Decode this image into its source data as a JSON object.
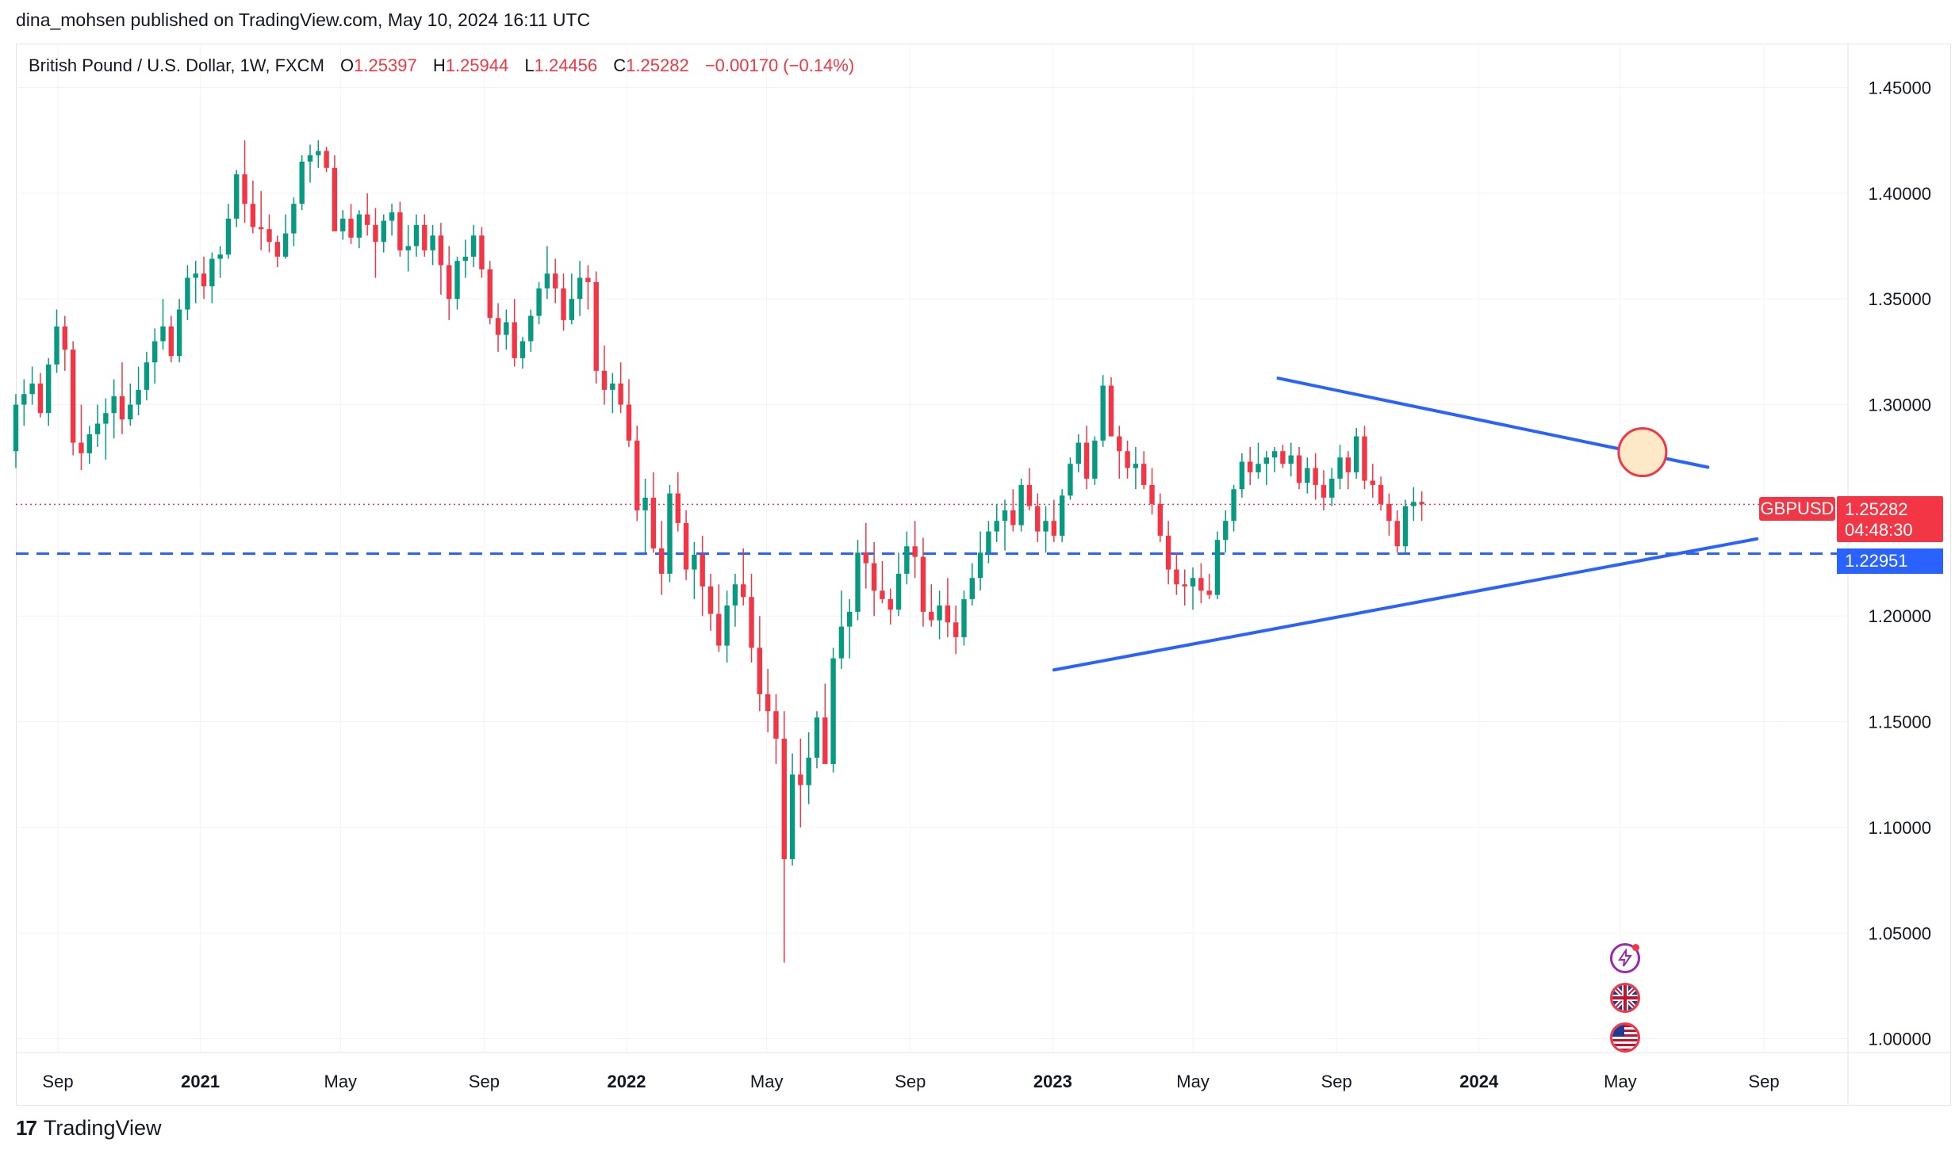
{
  "header": {
    "publisher_line": "dina_mohsen published on TradingView.com, May 10, 2024 16:11 UTC"
  },
  "legend": {
    "symbol": "British Pound / U.S. Dollar, 1W, FXCM",
    "open_label": "O",
    "open": "1.25397",
    "high_label": "H",
    "high": "1.25944",
    "low_label": "L",
    "low": "1.24456",
    "close_label": "C",
    "close": "1.25282",
    "change": "−0.00170 (−0.14%)"
  },
  "price_labels": {
    "symbol_tag": "GBPUSD",
    "last_price": "1.25282",
    "countdown": "04:48:30",
    "support_level": "1.22951"
  },
  "footer": {
    "brand": "TradingView"
  },
  "event_icons": [
    "lightning-event-icon",
    "uk-flag-icon",
    "us-flag-icon"
  ],
  "colors": {
    "up": "#089981",
    "down": "#f23645",
    "trendline": "#2962ff",
    "support": "#2962ff",
    "highlight_fill": "#fde8c8",
    "highlight_stroke": "#f23645"
  },
  "chart_data": {
    "type": "candlestick",
    "title": "British Pound / U.S. Dollar, 1W, FXCM",
    "y_ticks": [
      "1.45000",
      "1.40000",
      "1.35000",
      "1.30000",
      "1.25000",
      "1.20000",
      "1.15000",
      "1.10000",
      "1.05000",
      "1.00000"
    ],
    "ylim": [
      0.9935,
      1.4708
    ],
    "x_ticks": [
      {
        "label": "Sep",
        "date": "2020-09-01",
        "bold": false
      },
      {
        "label": "2021",
        "date": "2021-01-01",
        "bold": true
      },
      {
        "label": "May",
        "date": "2021-05-01",
        "bold": false
      },
      {
        "label": "Sep",
        "date": "2021-09-01",
        "bold": false
      },
      {
        "label": "2022",
        "date": "2022-01-01",
        "bold": true
      },
      {
        "label": "May",
        "date": "2022-05-01",
        "bold": false
      },
      {
        "label": "Sep",
        "date": "2022-09-01",
        "bold": false
      },
      {
        "label": "2023",
        "date": "2023-01-01",
        "bold": true
      },
      {
        "label": "May",
        "date": "2023-05-01",
        "bold": false
      },
      {
        "label": "Sep",
        "date": "2023-09-01",
        "bold": false
      },
      {
        "label": "2024",
        "date": "2024-01-01",
        "bold": true
      },
      {
        "label": "May",
        "date": "2024-05-01",
        "bold": false
      },
      {
        "label": "Sep",
        "date": "2024-09-01",
        "bold": false
      }
    ],
    "xlim": [
      "2020-07-27",
      "2024-11-12"
    ],
    "candles_weekly_from": "2020-07-27",
    "candles_ohlc": [
      [
        1.278,
        1.305,
        1.27,
        1.3
      ],
      [
        1.3,
        1.312,
        1.29,
        1.305
      ],
      [
        1.305,
        1.318,
        1.3,
        1.31
      ],
      [
        1.31,
        1.315,
        1.294,
        1.296
      ],
      [
        1.296,
        1.322,
        1.29,
        1.319
      ],
      [
        1.319,
        1.345,
        1.315,
        1.337
      ],
      [
        1.337,
        1.342,
        1.316,
        1.326
      ],
      [
        1.326,
        1.33,
        1.276,
        1.282
      ],
      [
        1.282,
        1.3,
        1.269,
        1.277
      ],
      [
        1.277,
        1.29,
        1.272,
        1.286
      ],
      [
        1.286,
        1.3,
        1.28,
        1.291
      ],
      [
        1.291,
        1.303,
        1.274,
        1.296
      ],
      [
        1.296,
        1.312,
        1.284,
        1.304
      ],
      [
        1.304,
        1.32,
        1.286,
        1.293
      ],
      [
        1.293,
        1.31,
        1.29,
        1.3
      ],
      [
        1.3,
        1.318,
        1.295,
        1.307
      ],
      [
        1.307,
        1.325,
        1.302,
        1.32
      ],
      [
        1.32,
        1.336,
        1.31,
        1.33
      ],
      [
        1.33,
        1.35,
        1.326,
        1.337
      ],
      [
        1.337,
        1.342,
        1.32,
        1.323
      ],
      [
        1.323,
        1.35,
        1.32,
        1.345
      ],
      [
        1.345,
        1.366,
        1.34,
        1.36
      ],
      [
        1.36,
        1.368,
        1.348,
        1.362
      ],
      [
        1.362,
        1.37,
        1.35,
        1.356
      ],
      [
        1.356,
        1.372,
        1.348,
        1.369
      ],
      [
        1.369,
        1.375,
        1.36,
        1.371
      ],
      [
        1.371,
        1.395,
        1.369,
        1.388
      ],
      [
        1.388,
        1.411,
        1.384,
        1.409
      ],
      [
        1.409,
        1.425,
        1.386,
        1.395
      ],
      [
        1.395,
        1.406,
        1.381,
        1.384
      ],
      [
        1.384,
        1.401,
        1.373,
        1.383
      ],
      [
        1.383,
        1.39,
        1.372,
        1.377
      ],
      [
        1.377,
        1.38,
        1.365,
        1.37
      ],
      [
        1.37,
        1.39,
        1.369,
        1.381
      ],
      [
        1.381,
        1.398,
        1.375,
        1.395
      ],
      [
        1.395,
        1.418,
        1.392,
        1.415
      ],
      [
        1.415,
        1.423,
        1.405,
        1.418
      ],
      [
        1.418,
        1.425,
        1.412,
        1.42
      ],
      [
        1.42,
        1.422,
        1.41,
        1.412
      ],
      [
        1.412,
        1.418,
        1.391,
        1.382
      ],
      [
        1.382,
        1.392,
        1.378,
        1.388
      ],
      [
        1.388,
        1.395,
        1.376,
        1.379
      ],
      [
        1.379,
        1.392,
        1.374,
        1.39
      ],
      [
        1.39,
        1.4,
        1.38,
        1.385
      ],
      [
        1.385,
        1.393,
        1.36,
        1.377
      ],
      [
        1.377,
        1.39,
        1.372,
        1.387
      ],
      [
        1.387,
        1.395,
        1.38,
        1.391
      ],
      [
        1.391,
        1.396,
        1.37,
        1.373
      ],
      [
        1.373,
        1.385,
        1.363,
        1.375
      ],
      [
        1.375,
        1.39,
        1.37,
        1.385
      ],
      [
        1.385,
        1.39,
        1.37,
        1.373
      ],
      [
        1.373,
        1.385,
        1.366,
        1.38
      ],
      [
        1.38,
        1.386,
        1.352,
        1.366
      ],
      [
        1.366,
        1.375,
        1.34,
        1.35
      ],
      [
        1.35,
        1.37,
        1.345,
        1.368
      ],
      [
        1.368,
        1.378,
        1.36,
        1.37
      ],
      [
        1.37,
        1.385,
        1.365,
        1.38
      ],
      [
        1.38,
        1.384,
        1.36,
        1.364
      ],
      [
        1.364,
        1.368,
        1.338,
        1.341
      ],
      [
        1.341,
        1.348,
        1.325,
        1.333
      ],
      [
        1.333,
        1.345,
        1.326,
        1.339
      ],
      [
        1.339,
        1.35,
        1.318,
        1.322
      ],
      [
        1.322,
        1.332,
        1.317,
        1.33
      ],
      [
        1.33,
        1.345,
        1.325,
        1.342
      ],
      [
        1.342,
        1.358,
        1.338,
        1.355
      ],
      [
        1.355,
        1.375,
        1.35,
        1.362
      ],
      [
        1.362,
        1.369,
        1.348,
        1.355
      ],
      [
        1.355,
        1.362,
        1.335,
        1.34
      ],
      [
        1.34,
        1.362,
        1.338,
        1.35
      ],
      [
        1.35,
        1.368,
        1.342,
        1.36
      ],
      [
        1.36,
        1.366,
        1.345,
        1.358
      ],
      [
        1.358,
        1.363,
        1.31,
        1.316
      ],
      [
        1.316,
        1.328,
        1.3,
        1.307
      ],
      [
        1.307,
        1.315,
        1.296,
        1.31
      ],
      [
        1.31,
        1.32,
        1.296,
        1.3
      ],
      [
        1.3,
        1.312,
        1.28,
        1.283
      ],
      [
        1.283,
        1.29,
        1.245,
        1.25
      ],
      [
        1.25,
        1.265,
        1.23,
        1.256
      ],
      [
        1.256,
        1.268,
        1.23,
        1.232
      ],
      [
        1.232,
        1.245,
        1.21,
        1.22
      ],
      [
        1.22,
        1.262,
        1.216,
        1.258
      ],
      [
        1.258,
        1.268,
        1.24,
        1.244
      ],
      [
        1.244,
        1.25,
        1.217,
        1.222
      ],
      [
        1.222,
        1.235,
        1.208,
        1.229
      ],
      [
        1.229,
        1.238,
        1.2,
        1.214
      ],
      [
        1.214,
        1.22,
        1.193,
        1.201
      ],
      [
        1.201,
        1.215,
        1.183,
        1.186
      ],
      [
        1.186,
        1.212,
        1.178,
        1.205
      ],
      [
        1.205,
        1.22,
        1.195,
        1.215
      ],
      [
        1.215,
        1.232,
        1.205,
        1.209
      ],
      [
        1.209,
        1.22,
        1.178,
        1.185
      ],
      [
        1.185,
        1.2,
        1.155,
        1.163
      ],
      [
        1.163,
        1.175,
        1.145,
        1.155
      ],
      [
        1.155,
        1.163,
        1.13,
        1.142
      ],
      [
        1.142,
        1.155,
        1.036,
        1.085
      ],
      [
        1.085,
        1.135,
        1.082,
        1.125
      ],
      [
        1.125,
        1.142,
        1.1,
        1.12
      ],
      [
        1.12,
        1.145,
        1.111,
        1.133
      ],
      [
        1.133,
        1.155,
        1.128,
        1.152
      ],
      [
        1.152,
        1.168,
        1.15,
        1.13
      ],
      [
        1.13,
        1.185,
        1.126,
        1.18
      ],
      [
        1.18,
        1.212,
        1.175,
        1.195
      ],
      [
        1.195,
        1.208,
        1.18,
        1.202
      ],
      [
        1.202,
        1.236,
        1.198,
        1.23
      ],
      [
        1.23,
        1.244,
        1.213,
        1.225
      ],
      [
        1.225,
        1.235,
        1.2,
        1.212
      ],
      [
        1.212,
        1.226,
        1.206,
        1.208
      ],
      [
        1.208,
        1.213,
        1.196,
        1.203
      ],
      [
        1.203,
        1.23,
        1.2,
        1.22
      ],
      [
        1.22,
        1.24,
        1.215,
        1.233
      ],
      [
        1.233,
        1.245,
        1.218,
        1.228
      ],
      [
        1.228,
        1.237,
        1.195,
        1.202
      ],
      [
        1.202,
        1.215,
        1.195,
        1.198
      ],
      [
        1.198,
        1.212,
        1.189,
        1.205
      ],
      [
        1.205,
        1.218,
        1.19,
        1.197
      ],
      [
        1.197,
        1.205,
        1.182,
        1.19
      ],
      [
        1.19,
        1.212,
        1.186,
        1.208
      ],
      [
        1.208,
        1.225,
        1.205,
        1.218
      ],
      [
        1.218,
        1.24,
        1.212,
        1.23
      ],
      [
        1.23,
        1.245,
        1.225,
        1.24
      ],
      [
        1.24,
        1.253,
        1.235,
        1.245
      ],
      [
        1.245,
        1.255,
        1.231,
        1.25
      ],
      [
        1.25,
        1.26,
        1.24,
        1.243
      ],
      [
        1.243,
        1.265,
        1.24,
        1.262
      ],
      [
        1.262,
        1.27,
        1.25,
        1.252
      ],
      [
        1.252,
        1.258,
        1.235,
        1.24
      ],
      [
        1.24,
        1.252,
        1.23,
        1.245
      ],
      [
        1.245,
        1.255,
        1.235,
        1.238
      ],
      [
        1.238,
        1.26,
        1.235,
        1.257
      ],
      [
        1.257,
        1.275,
        1.255,
        1.272
      ],
      [
        1.272,
        1.286,
        1.268,
        1.282
      ],
      [
        1.282,
        1.29,
        1.26,
        1.265
      ],
      [
        1.265,
        1.285,
        1.262,
        1.283
      ],
      [
        1.283,
        1.314,
        1.28,
        1.309
      ],
      [
        1.309,
        1.313,
        1.285,
        1.285
      ],
      [
        1.285,
        1.29,
        1.265,
        1.278
      ],
      [
        1.278,
        1.283,
        1.265,
        1.27
      ],
      [
        1.27,
        1.28,
        1.26,
        1.272
      ],
      [
        1.272,
        1.278,
        1.26,
        1.262
      ],
      [
        1.262,
        1.27,
        1.248,
        1.253
      ],
      [
        1.253,
        1.258,
        1.235,
        1.238
      ],
      [
        1.238,
        1.245,
        1.215,
        1.222
      ],
      [
        1.222,
        1.23,
        1.21,
        1.215
      ],
      [
        1.215,
        1.222,
        1.205,
        1.214
      ],
      [
        1.214,
        1.223,
        1.203,
        1.218
      ],
      [
        1.218,
        1.225,
        1.206,
        1.212
      ],
      [
        1.212,
        1.22,
        1.208,
        1.21
      ],
      [
        1.21,
        1.24,
        1.208,
        1.236
      ],
      [
        1.236,
        1.25,
        1.23,
        1.245
      ],
      [
        1.245,
        1.262,
        1.24,
        1.26
      ],
      [
        1.26,
        1.277,
        1.256,
        1.273
      ],
      [
        1.273,
        1.28,
        1.262,
        1.268
      ],
      [
        1.268,
        1.282,
        1.265,
        1.272
      ],
      [
        1.272,
        1.278,
        1.262,
        1.275
      ],
      [
        1.275,
        1.28,
        1.268,
        1.278
      ],
      [
        1.278,
        1.281,
        1.27,
        1.272
      ],
      [
        1.272,
        1.282,
        1.266,
        1.276
      ],
      [
        1.276,
        1.28,
        1.26,
        1.263
      ],
      [
        1.263,
        1.275,
        1.258,
        1.27
      ],
      [
        1.27,
        1.277,
        1.255,
        1.262
      ],
      [
        1.262,
        1.269,
        1.25,
        1.256
      ],
      [
        1.256,
        1.27,
        1.252,
        1.265
      ],
      [
        1.265,
        1.281,
        1.26,
        1.275
      ],
      [
        1.275,
        1.278,
        1.26,
        1.268
      ],
      [
        1.268,
        1.289,
        1.265,
        1.285
      ],
      [
        1.285,
        1.29,
        1.26,
        1.264
      ],
      [
        1.264,
        1.272,
        1.256,
        1.262
      ],
      [
        1.262,
        1.266,
        1.25,
        1.253
      ],
      [
        1.253,
        1.258,
        1.238,
        1.245
      ],
      [
        1.245,
        1.25,
        1.23,
        1.233
      ],
      [
        1.233,
        1.255,
        1.23,
        1.252
      ],
      [
        1.252,
        1.261,
        1.245,
        1.254
      ],
      [
        1.254,
        1.259,
        1.245,
        1.253
      ]
    ],
    "trendlines": [
      {
        "name": "upper",
        "from": [
          "2023-07-13",
          1.3125
        ],
        "to": [
          "2024-07-15",
          1.2704
        ]
      },
      {
        "name": "lower",
        "from": [
          "2023-01-02",
          1.1745
        ],
        "to": [
          "2024-08-26",
          1.2365
        ]
      }
    ],
    "horizontal_levels": [
      {
        "value": 1.22951,
        "style": "dashed",
        "color": "#2962ff"
      },
      {
        "value": 1.25282,
        "style": "dotted",
        "color": "#f23645"
      }
    ],
    "highlight": {
      "date": "2024-05-20",
      "price": 1.2775
    },
    "grid": true,
    "y_axis_position": "right"
  }
}
